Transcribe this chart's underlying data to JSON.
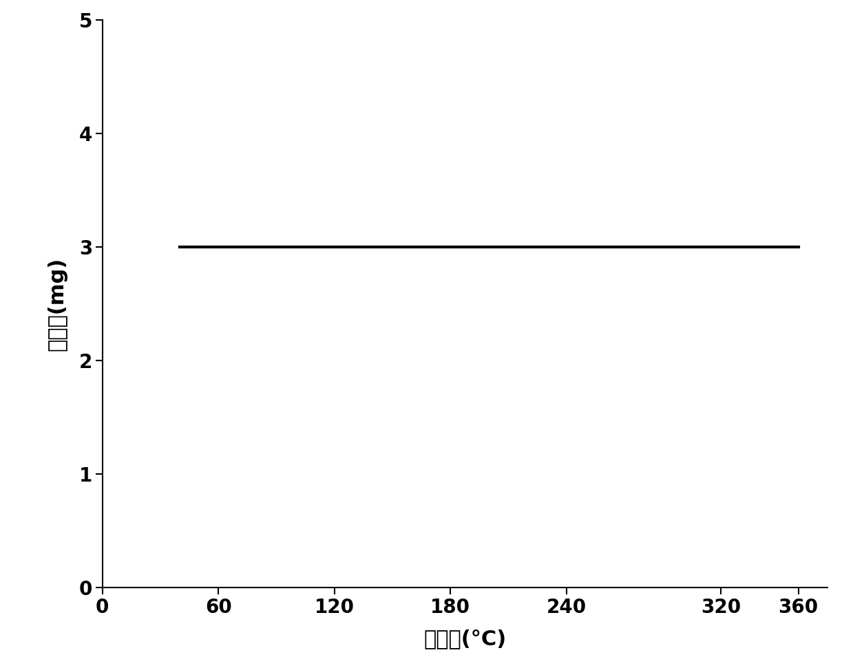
{
  "x_start": 40,
  "x_end": 360,
  "y_value": 3.0,
  "xlim": [
    0,
    375
  ],
  "ylim": [
    0,
    5
  ],
  "xticks": [
    0,
    60,
    120,
    180,
    240,
    320,
    360
  ],
  "yticks": [
    0,
    1,
    2,
    3,
    4,
    5
  ],
  "xlabel": "温度　(°C)",
  "ylabel": "质量　(mg)",
  "line_color": "#000000",
  "line_width": 3.0,
  "background_color": "#ffffff",
  "xlabel_fontsize": 22,
  "ylabel_fontsize": 22,
  "tick_fontsize": 20,
  "axis_linewidth": 1.5
}
